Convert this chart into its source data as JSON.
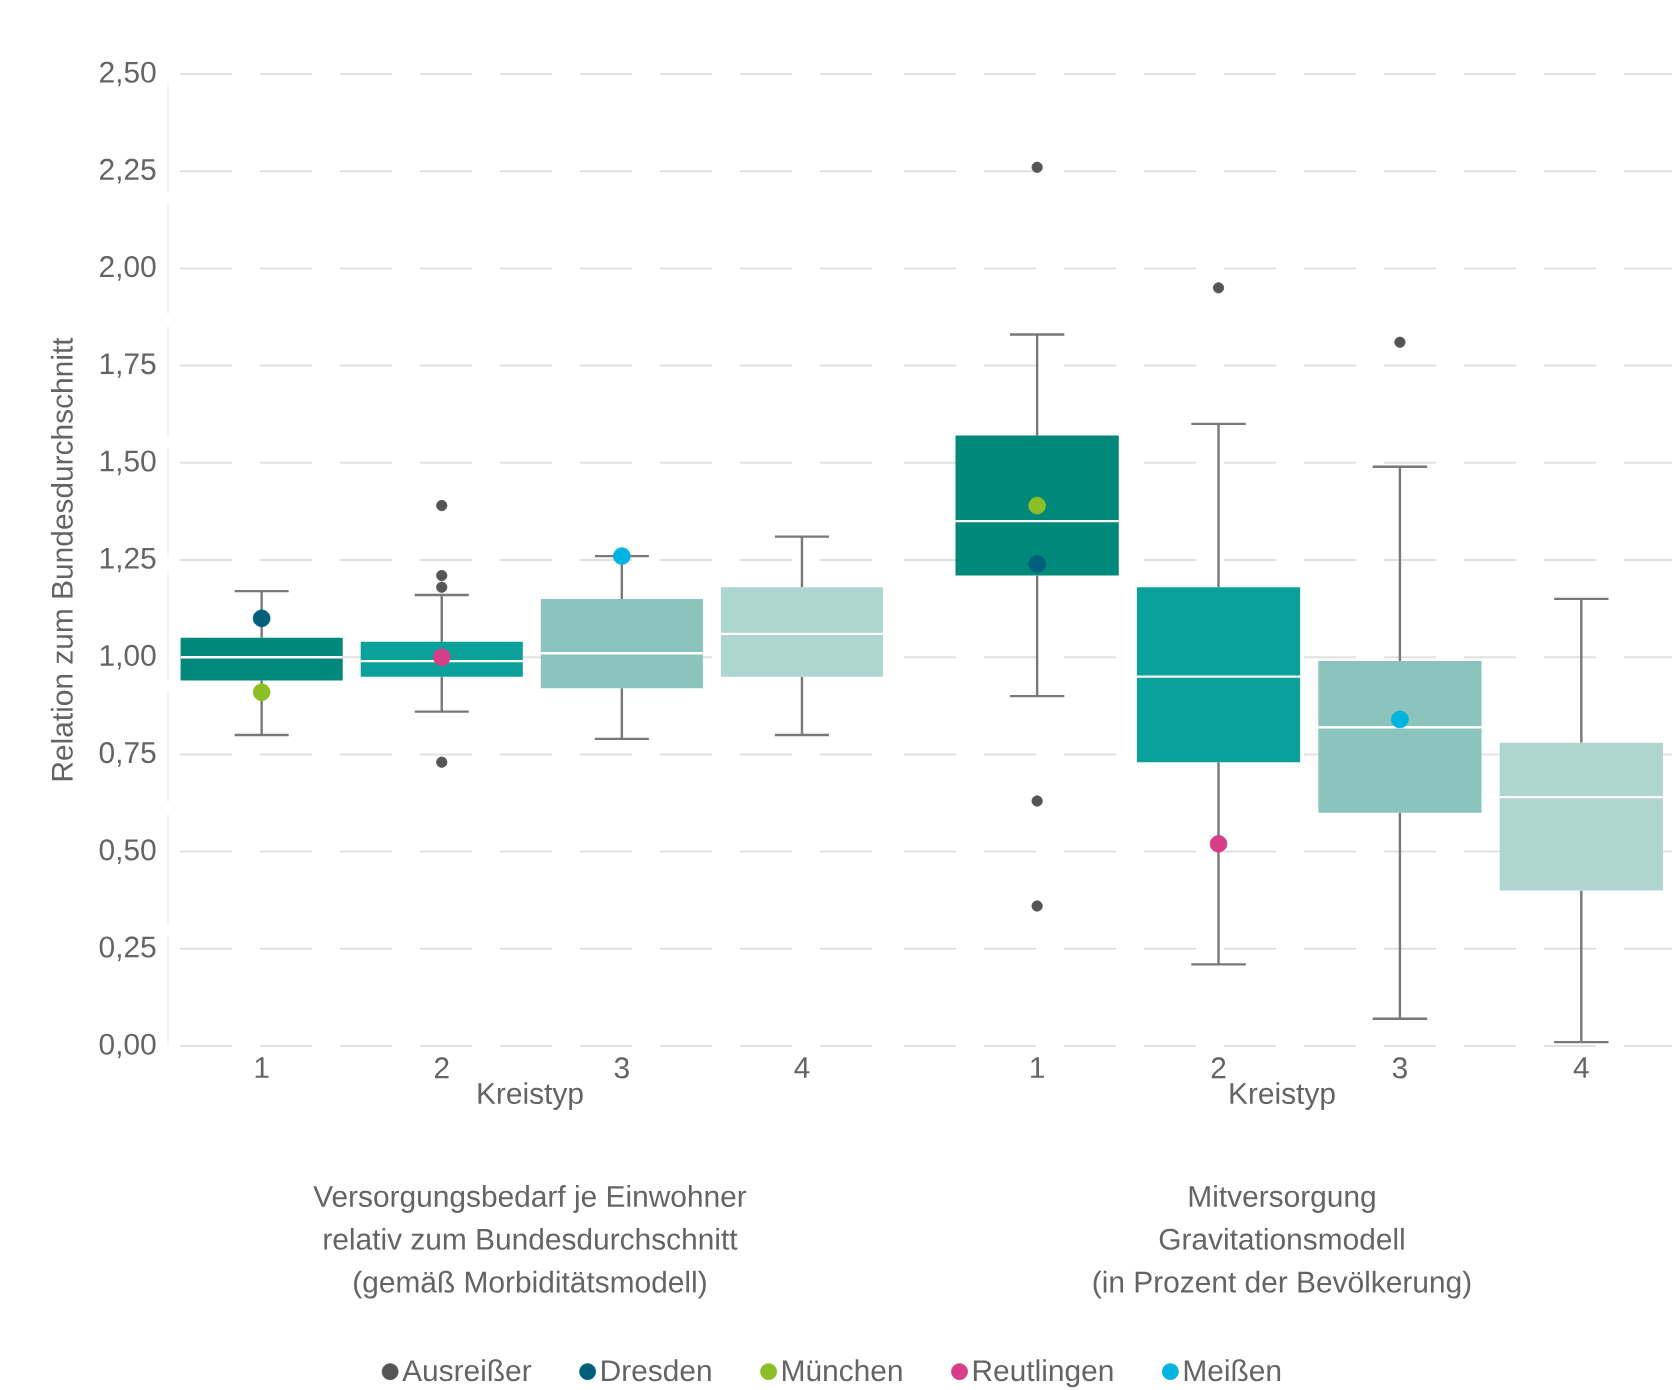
{
  "chart_data": [
    {
      "type": "box",
      "categories": [
        "1",
        "2",
        "3",
        "4"
      ],
      "xlabel": "Kreistyp",
      "ylabel": "Relation zum Bundesdurchschnitt",
      "annotations": [
        "Versorgungsbedarf je Einwohner",
        "relativ zum Bundesdurchschnitt",
        "(gemäß Morbiditätsmodell)"
      ],
      "ylim": [
        0,
        2.5
      ],
      "yticks": [
        {
          "value": 0,
          "label": "0,00"
        },
        {
          "value": 0.25,
          "label": "0,25"
        },
        {
          "value": 0.5,
          "label": "0,50"
        },
        {
          "value": 0.75,
          "label": "0,75"
        },
        {
          "value": 1,
          "label": "1,00"
        },
        {
          "value": 1.25,
          "label": "1,25"
        },
        {
          "value": 1.5,
          "label": "1,50"
        },
        {
          "value": 1.75,
          "label": "1,75"
        },
        {
          "value": 2,
          "label": "2,00"
        },
        {
          "value": 2.25,
          "label": "2,25"
        },
        {
          "value": 2.5,
          "label": "2,50"
        }
      ],
      "grid": "y",
      "legend": "bottom",
      "marker": "circle",
      "colors": [
        "#00897b",
        "#0aa19a",
        "#8ac4bd",
        "#aed6d1"
      ],
      "boxes": [
        {
          "low": 0.8,
          "q1": 0.94,
          "median": 1.0,
          "q3": 1.05,
          "high": 1.17
        },
        {
          "low": 0.86,
          "q1": 0.95,
          "median": 0.99,
          "q3": 1.04,
          "high": 1.16
        },
        {
          "low": 0.79,
          "q1": 0.92,
          "median": 1.01,
          "q3": 1.15,
          "high": 1.26
        },
        {
          "low": 0.8,
          "q1": 0.95,
          "median": 1.06,
          "q3": 1.18,
          "high": 1.31
        }
      ],
      "series": [
        {
          "name": "Ausreißer",
          "type": "scatter",
          "color": "#555555",
          "x": [
            "2",
            "2",
            "2",
            "2"
          ],
          "values": [
            1.39,
            1.21,
            1.18,
            0.73
          ]
        },
        {
          "name": "Dresden",
          "type": "scatter",
          "color": "#005f7a",
          "x": [
            "1"
          ],
          "values": [
            1.1
          ]
        },
        {
          "name": "München",
          "type": "scatter",
          "color": "#8cbf26",
          "x": [
            "1"
          ],
          "values": [
            0.91
          ]
        },
        {
          "name": "Reutlingen",
          "type": "scatter",
          "color": "#d63e87",
          "x": [
            "2"
          ],
          "values": [
            1.0
          ]
        },
        {
          "name": "Meißen",
          "type": "scatter",
          "color": "#00b4e0",
          "x": [
            "3"
          ],
          "values": [
            1.26
          ]
        }
      ]
    },
    {
      "type": "box",
      "categories": [
        "1",
        "2",
        "3",
        "4"
      ],
      "xlabel": "Kreistyp",
      "annotations": [
        "Mitversorgung",
        "Gravitationsmodell",
        "(in Prozent der Bevölkerung)"
      ],
      "ylim": [
        0,
        2.5
      ],
      "yticks": [
        {
          "value": 0,
          "label": null
        },
        {
          "value": 0.25,
          "label": null
        },
        {
          "value": 0.5,
          "label": null
        },
        {
          "value": 0.75,
          "label": null
        },
        {
          "value": 1,
          "label": null
        },
        {
          "value": 1.25,
          "label": null
        },
        {
          "value": 1.5,
          "label": null
        },
        {
          "value": 1.75,
          "label": null
        },
        {
          "value": 2,
          "label": null
        },
        {
          "value": 2.25,
          "label": null
        },
        {
          "value": 2.5,
          "label": null
        }
      ],
      "tick_labels": "x",
      "grid": "y",
      "marker": "circle",
      "colors": [
        "#00897b",
        "#0aa19a",
        "#8ac4bd",
        "#aed6d1"
      ],
      "boxes": [
        {
          "low": 0.9,
          "q1": 1.21,
          "median": 1.35,
          "q3": 1.57,
          "high": 1.83
        },
        {
          "low": 0.21,
          "q1": 0.73,
          "median": 0.95,
          "q3": 1.18,
          "high": 1.6
        },
        {
          "low": 0.07,
          "q1": 0.6,
          "median": 0.82,
          "q3": 0.99,
          "high": 1.49
        },
        {
          "low": 0.01,
          "q1": 0.4,
          "median": 0.64,
          "q3": 0.78,
          "high": 1.15
        }
      ],
      "series": [
        {
          "type": "scatter",
          "color": "#555555",
          "x": [
            "1",
            "1",
            "1",
            "2",
            "3"
          ],
          "values": [
            2.26,
            0.63,
            0.36,
            1.95,
            1.81
          ]
        },
        {
          "type": "scatter",
          "color": "#005f7a",
          "x": [
            "1"
          ],
          "values": [
            1.24
          ]
        },
        {
          "type": "scatter",
          "color": "#8cbf26",
          "x": [
            "1"
          ],
          "values": [
            1.39
          ]
        },
        {
          "type": "scatter",
          "color": "#d63e87",
          "x": [
            "2"
          ],
          "values": [
            0.52
          ]
        },
        {
          "type": "scatter",
          "color": "#00b4e0",
          "x": [
            "3"
          ],
          "values": [
            0.84
          ]
        }
      ]
    }
  ]
}
